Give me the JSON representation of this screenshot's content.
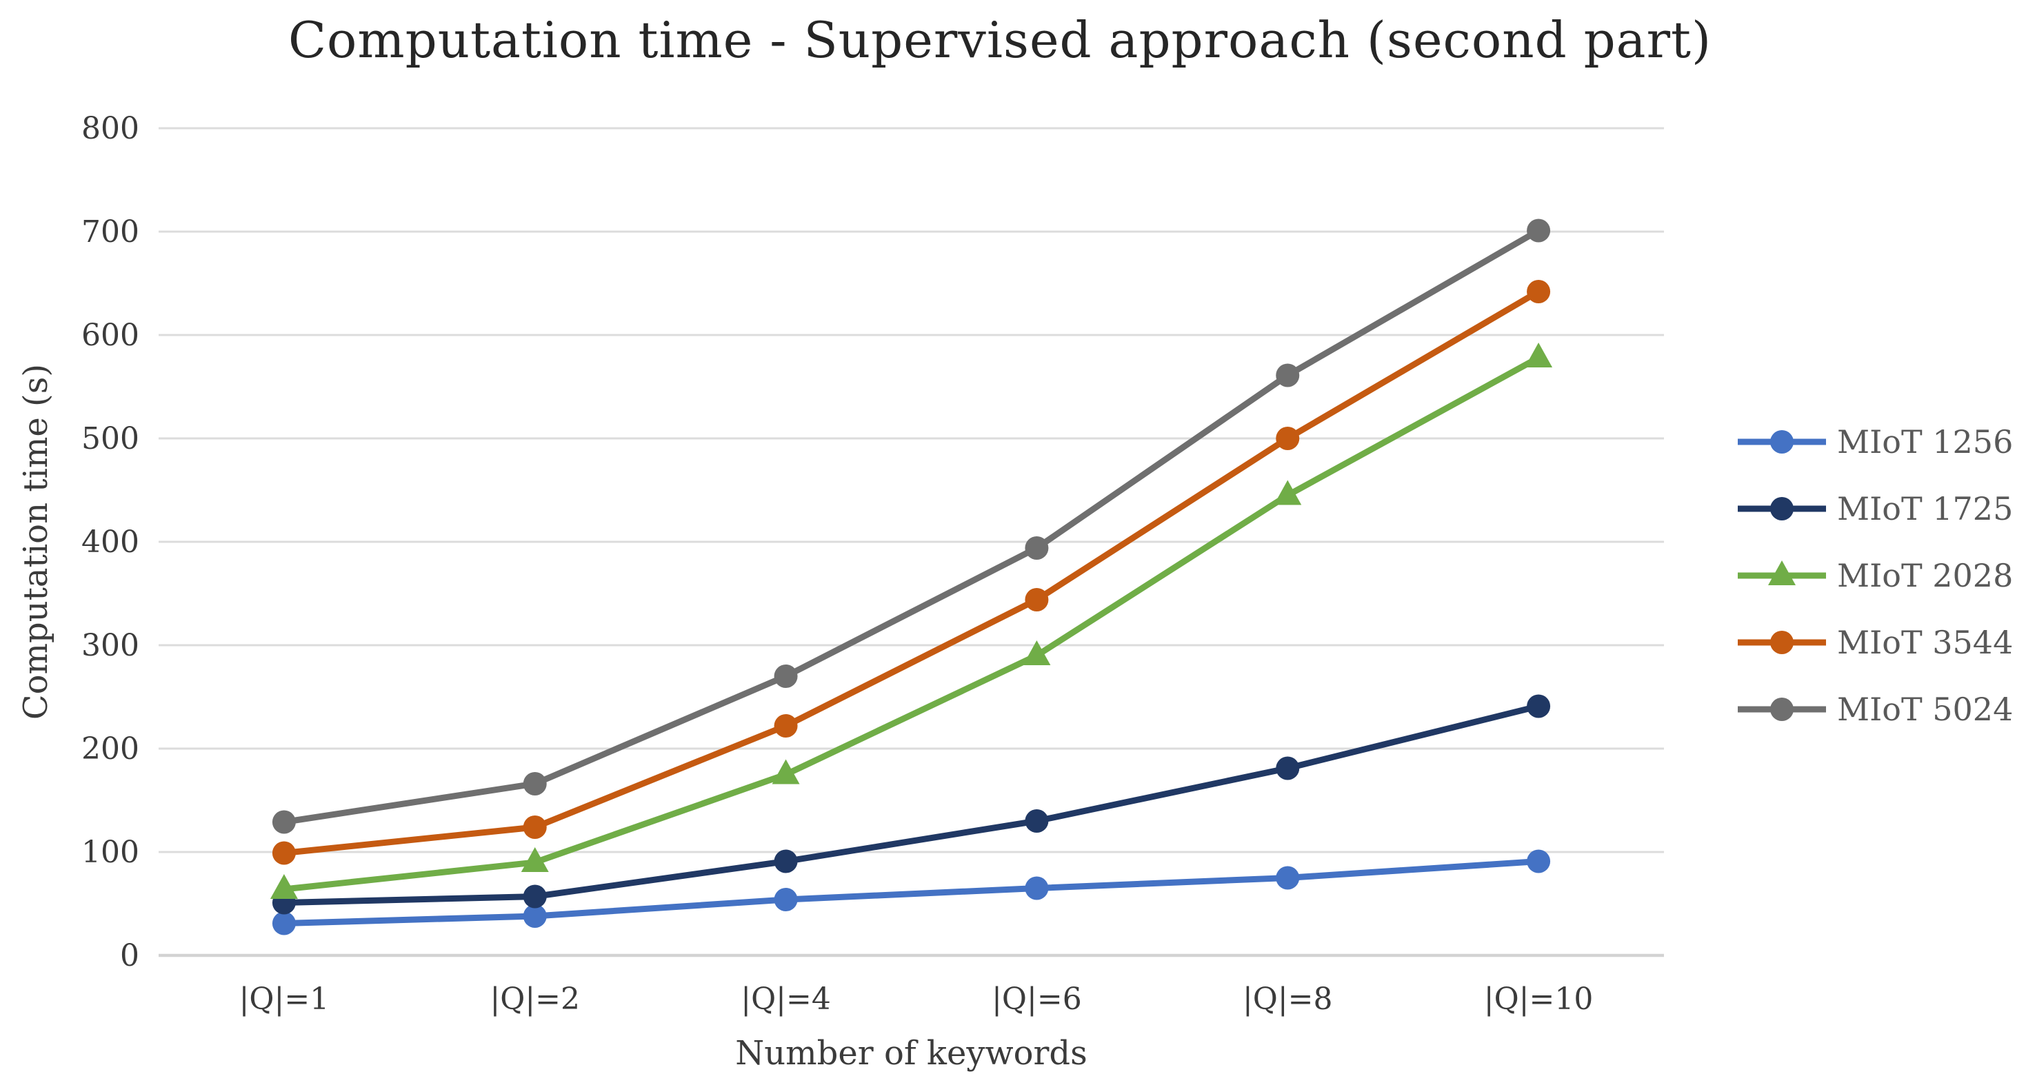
{
  "title": "Computation time - Supervised approach (second part)",
  "chart_data": {
    "type": "line",
    "title": "Computation time - Supervised approach (second part)",
    "categories": [
      "|Q|=1",
      "|Q|=2",
      "|Q|=4",
      "|Q|=6",
      "|Q|=8",
      "|Q|=10"
    ],
    "xlabel": "Number of keywords",
    "ylabel": "Computation time (s)",
    "ylim": [
      0,
      800
    ],
    "ytick_step": 100,
    "yticks": [
      0,
      100,
      200,
      300,
      400,
      500,
      600,
      700,
      800
    ],
    "grid": true,
    "legend_position": "right",
    "series": [
      {
        "name": "MIoT 1256",
        "color": "#4472C4",
        "marker": "circle",
        "values": [
          31,
          38,
          54,
          65,
          75,
          91
        ]
      },
      {
        "name": "MIoT 1725",
        "color": "#203864",
        "marker": "circle",
        "values": [
          51,
          57,
          91,
          130,
          181,
          241
        ]
      },
      {
        "name": "MIoT 2028",
        "color": "#70AD47",
        "marker": "triangle",
        "values": [
          64,
          90,
          175,
          290,
          445,
          578
        ]
      },
      {
        "name": "MIoT 3544",
        "color": "#C55A11",
        "marker": "circle",
        "values": [
          99,
          124,
          222,
          344,
          500,
          642
        ]
      },
      {
        "name": "MIoT 5024",
        "color": "#6F6F6F",
        "marker": "circle",
        "values": [
          129,
          166,
          270,
          394,
          561,
          701
        ]
      }
    ]
  },
  "colors": {
    "gridline": "#DCDCDC",
    "axis_line": "#D3D3D3",
    "tick_label": "#3B3B3B",
    "title_text": "#262626",
    "legend_text": "#595959",
    "background": "#FFFFFF"
  }
}
